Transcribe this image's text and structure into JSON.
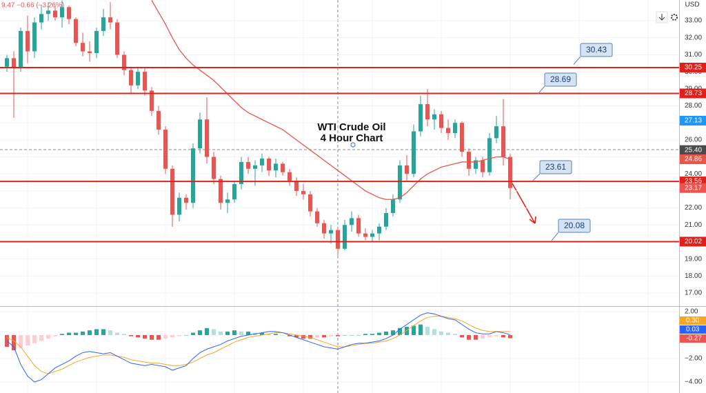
{
  "chart_data": [
    {
      "type": "candlestick",
      "title": [
        "WTI Crude Oil",
        "4 Hour Chart"
      ],
      "legend": "9.47  −0.66 (−3.26%)",
      "currency": "USD",
      "up_color": "#26a69a",
      "down_color": "#ef5350",
      "ylim": [
        16.27,
        34.22
      ],
      "yticks": [
        {
          "value": 17,
          "label": "17.00"
        },
        {
          "value": 18,
          "label": "18.00"
        },
        {
          "value": 19,
          "label": "19.00"
        },
        {
          "value": 20,
          "label": "20.00"
        },
        {
          "value": 21,
          "label": "21.00"
        },
        {
          "value": 22,
          "label": "22.00"
        },
        {
          "value": 23,
          "label": "23.00"
        },
        {
          "value": 24,
          "label": "24.00"
        },
        {
          "value": 25,
          "label": "25.00"
        },
        {
          "value": 26,
          "label": "26.00"
        },
        {
          "value": 27,
          "label": "27.00"
        },
        {
          "value": 28,
          "label": "28.00"
        },
        {
          "value": 29,
          "label": "29.00"
        },
        {
          "value": 30,
          "label": "30.00"
        },
        {
          "value": 31,
          "label": "31.00"
        },
        {
          "value": 32,
          "label": "32.00"
        },
        {
          "value": 33,
          "label": "33.00"
        }
      ],
      "grid": true,
      "candles": [
        [
          30.3,
          31,
          30,
          30.8
        ],
        [
          30.8,
          31.2,
          27.3,
          30.2
        ],
        [
          30.2,
          32.6,
          30,
          32.4
        ],
        [
          32.4,
          33.3,
          30.5,
          31.2
        ],
        [
          31.2,
          33.2,
          30.8,
          32.9
        ],
        [
          32.9,
          33.9,
          32.5,
          33.4
        ],
        [
          33.4,
          34.1,
          33,
          33.6
        ],
        [
          33.6,
          33.9,
          33,
          33.2
        ],
        [
          33.2,
          34.2,
          32.6,
          33.8
        ],
        [
          33.8,
          33.9,
          32.8,
          33.1
        ],
        [
          33.1,
          33.2,
          31.5,
          31.7
        ],
        [
          31.7,
          32.3,
          30.9,
          31.2
        ],
        [
          31.2,
          31.8,
          30.6,
          31.1
        ],
        [
          31.1,
          32.6,
          30.8,
          32.4
        ],
        [
          32.4,
          33.7,
          32.1,
          33.2
        ],
        [
          33.2,
          34.1,
          32.5,
          32.9
        ],
        [
          32.9,
          33.1,
          30.8,
          31
        ],
        [
          31,
          31.2,
          29.8,
          30.1
        ],
        [
          30.1,
          30.3,
          28.7,
          29.2
        ],
        [
          29.2,
          30.3,
          29,
          30
        ],
        [
          30,
          30.2,
          28.6,
          28.9
        ],
        [
          28.9,
          29.1,
          27.4,
          27.7
        ],
        [
          27.7,
          28,
          26.3,
          26.6
        ],
        [
          26.6,
          26.8,
          24,
          24.3
        ],
        [
          24.3,
          24.5,
          20.9,
          21.6
        ],
        [
          21.6,
          22.9,
          21.2,
          22.6
        ],
        [
          22.6,
          22.8,
          21.9,
          22.3
        ],
        [
          22.3,
          25.8,
          22,
          25.5
        ],
        [
          25.5,
          27.6,
          25.2,
          27.2
        ],
        [
          27.2,
          28.5,
          24.6,
          25
        ],
        [
          25,
          25.3,
          23.4,
          23.7
        ],
        [
          23.7,
          23.9,
          21.9,
          22.3
        ],
        [
          22.3,
          22.9,
          21.7,
          22.5
        ],
        [
          22.5,
          23.6,
          22.3,
          23.4
        ],
        [
          23.4,
          25,
          23.1,
          24.7
        ],
        [
          24.7,
          25,
          24,
          24.3
        ],
        [
          24.3,
          24.8,
          23.3,
          24.5
        ],
        [
          24.5,
          25.2,
          24.1,
          24.9
        ],
        [
          24.9,
          25,
          23.9,
          24.2
        ],
        [
          24.2,
          24.9,
          23.8,
          24.6
        ],
        [
          24.6,
          24.7,
          23.9,
          24.1
        ],
        [
          24.1,
          24.3,
          23.3,
          23.6
        ],
        [
          23.6,
          23.8,
          22.7,
          23
        ],
        [
          23,
          23.4,
          22.5,
          22.8
        ],
        [
          22.8,
          23,
          21.5,
          21.8
        ],
        [
          21.8,
          22,
          20.9,
          21.1
        ],
        [
          21.1,
          21.3,
          20.2,
          20.5
        ],
        [
          20.5,
          21,
          19.9,
          20.7
        ],
        [
          20.7,
          20.9,
          19.2,
          19.6
        ],
        [
          19.6,
          21.3,
          19.5,
          21
        ],
        [
          21,
          21.8,
          20.6,
          21.4
        ],
        [
          21.4,
          21.6,
          20.3,
          20.5
        ],
        [
          20.5,
          20.8,
          20.1,
          20.3
        ],
        [
          20.3,
          20.7,
          20,
          20.5
        ],
        [
          20.5,
          21.1,
          20.1,
          20.9
        ],
        [
          20.9,
          22,
          20.7,
          21.7
        ],
        [
          21.7,
          22.8,
          21.5,
          22.5
        ],
        [
          22.5,
          24.8,
          22.3,
          24.5
        ],
        [
          24.5,
          25.1,
          23.6,
          24
        ],
        [
          24,
          26.9,
          23.8,
          26.5
        ],
        [
          26.5,
          28.6,
          26.2,
          28.1
        ],
        [
          28.1,
          29,
          26.8,
          27.2
        ],
        [
          27.2,
          27.8,
          26.6,
          27.5
        ],
        [
          27.5,
          27.7,
          26.4,
          26.7
        ],
        [
          26.7,
          27.2,
          26,
          26.4
        ],
        [
          26.4,
          27.2,
          26.1,
          27
        ],
        [
          27,
          27.1,
          25,
          25.3
        ],
        [
          25.3,
          25.5,
          23.9,
          24.3
        ],
        [
          24.3,
          25,
          24,
          24.8
        ],
        [
          24.8,
          25,
          23.8,
          24.1
        ],
        [
          24.1,
          26.4,
          23.9,
          26.1
        ],
        [
          26.1,
          27.4,
          25.8,
          26.8
        ],
        [
          26.8,
          28.4,
          24.5,
          25
        ],
        [
          25,
          25.2,
          22.5,
          23.17
        ]
      ],
      "ma": {
        "color": "#e8564a",
        "values": [
          null,
          null,
          null,
          null,
          null,
          null,
          null,
          null,
          null,
          null,
          null,
          null,
          null,
          null,
          null,
          null,
          null,
          null,
          null,
          null,
          null,
          34.2,
          33.5,
          32.8,
          32,
          31.3,
          30.8,
          30.4,
          30.1,
          29.8,
          29.5,
          29.1,
          28.7,
          28.3,
          27.9,
          27.6,
          27.4,
          27.2,
          27,
          26.8,
          26.6,
          26.3,
          26,
          25.7,
          25.4,
          25.1,
          24.8,
          24.5,
          24.2,
          23.9,
          23.6,
          23.3,
          23,
          22.8,
          22.6,
          22.5,
          22.5,
          22.6,
          22.9,
          23.3,
          23.7,
          24,
          24.2,
          24.4,
          24.5,
          24.6,
          24.7,
          24.7,
          24.7,
          24.8,
          24.9,
          25,
          25,
          24.86
        ]
      },
      "levels": {
        "color": "#e0201b",
        "values": [
          30.25,
          28.73,
          23.56,
          20.02
        ]
      },
      "callouts": {
        "fill": "#d5e4f5",
        "border": "#5a7fb5",
        "text_color": "#1a3d7a",
        "values": [
          {
            "value": 30.43,
            "label": "30.43"
          },
          {
            "value": 28.69,
            "label": "28.69"
          },
          {
            "value": 23.61,
            "label": "23.61"
          },
          {
            "value": 20.08,
            "label": "20.08"
          }
        ]
      },
      "axis_markers": [
        {
          "value": 30.25,
          "label": "30.25",
          "color": "#e0201b"
        },
        {
          "value": 28.73,
          "label": "28.73",
          "color": "#e0201b"
        },
        {
          "value": 27.13,
          "label": "27.13",
          "color": "#2196f3"
        },
        {
          "value": 25.4,
          "label": "25.40",
          "color": "#4a4a4a"
        },
        {
          "value": 24.86,
          "label": "24.86",
          "color": "#e8564a"
        },
        {
          "value": 23.56,
          "label": "23.56",
          "color": "#e0201b"
        },
        {
          "value": 23.17,
          "label": "23.17",
          "color": "#ef5350"
        },
        {
          "value": 20.02,
          "label": "20.02",
          "color": "#e0201b"
        }
      ]
    },
    {
      "type": "macd",
      "ylim": [
        -4.94,
        2.29
      ],
      "yticks": [
        {
          "value": 2,
          "label": "2.00"
        },
        {
          "value": -2,
          "label": "−2.00"
        },
        {
          "value": -4,
          "label": "−4.00"
        }
      ],
      "hist_colors": {
        "pos_rising": "#26a69a",
        "pos_falling": "#b2dfdb",
        "neg_falling": "#ef5350",
        "neg_rising": "#ffcdd2"
      },
      "histogram": {
        "last_label": "-0.27",
        "color": "#ef5350",
        "values": [
          -1,
          -1.3,
          -1.1,
          -0.9,
          -0.7,
          -0.5,
          -0.3,
          -0.1,
          0.1,
          0.2,
          0.2,
          0.3,
          0.4,
          0.5,
          0.5,
          0.4,
          0.2,
          0.1,
          -0.1,
          -0.2,
          -0.3,
          -0.4,
          -0.4,
          -0.3,
          -0.2,
          -0.1,
          0,
          0.2,
          0.4,
          0.6,
          0.5,
          0.3,
          0.3,
          0.4,
          0.3,
          0.3,
          0.2,
          0.2,
          0.1,
          0.1,
          0,
          -0.1,
          -0.2,
          -0.3,
          -0.3,
          -0.2,
          -0.2,
          -0.1,
          -0.1,
          0,
          0,
          0,
          0.1,
          0.1,
          0.2,
          0.3,
          0.4,
          0.6,
          0.7,
          0.8,
          0.9,
          0.7,
          0.5,
          0.3,
          0.2,
          0.1,
          -0.2,
          -0.4,
          -0.4,
          -0.3,
          -0.2,
          -0.1,
          -0.2,
          -0.27
        ]
      },
      "series": [
        {
          "last_label": "0.30",
          "color": "#f5a623",
          "values": [
            -0.2,
            -0.5,
            -1,
            -1.8,
            -2.6,
            -3.1,
            -3.3,
            -3.1,
            -2.9,
            -2.6,
            -2.3,
            -2.1,
            -1.9,
            -1.8,
            -1.7,
            -1.7,
            -1.8,
            -1.9,
            -2.1,
            -2.2,
            -2.3,
            -2.4,
            -2.4,
            -2.5,
            -2.6,
            -2.6,
            -2.5,
            -2.3,
            -2,
            -1.7,
            -1.5,
            -1.2,
            -0.9,
            -0.6,
            -0.4,
            -0.2,
            -0.1,
            0,
            0.1,
            0.2,
            0.2,
            0.1,
            0,
            -0.1,
            -0.2,
            -0.4,
            -0.6,
            -0.8,
            -1,
            -1,
            -0.9,
            -0.8,
            -0.7,
            -0.7,
            -0.6,
            -0.5,
            -0.3,
            0,
            0.4,
            0.8,
            1.2,
            1.5,
            1.6,
            1.6,
            1.5,
            1.4,
            1.2,
            0.9,
            0.6,
            0.4,
            0.3,
            0.3,
            0.3,
            0.3
          ]
        },
        {
          "last_label": "0.03",
          "color": "#2962ff",
          "values": [
            -0.5,
            -1,
            -2.5,
            -3.5,
            -4,
            -3.8,
            -3.3,
            -2.8,
            -2.5,
            -2.2,
            -1.8,
            -1.5,
            -1.4,
            -1.5,
            -1.6,
            -1.5,
            -1.8,
            -2.1,
            -2.4,
            -2.5,
            -2.6,
            -2.5,
            -2.6,
            -2.7,
            -3,
            -2.8,
            -2.6,
            -2,
            -1.5,
            -1.2,
            -1,
            -0.8,
            -0.5,
            -0.3,
            -0.1,
            0,
            0.1,
            0.2,
            0.3,
            0.3,
            0.2,
            0,
            -0.2,
            -0.4,
            -0.6,
            -0.8,
            -1,
            -1.1,
            -1.2,
            -1,
            -0.8,
            -0.7,
            -0.7,
            -0.6,
            -0.5,
            -0.3,
            0,
            0.5,
            0.9,
            1.3,
            1.7,
            1.9,
            1.8,
            1.6,
            1.4,
            1.3,
            0.9,
            0.5,
            0.2,
            0.1,
            0.1,
            0.3,
            0.2,
            0.03
          ]
        }
      ]
    }
  ]
}
